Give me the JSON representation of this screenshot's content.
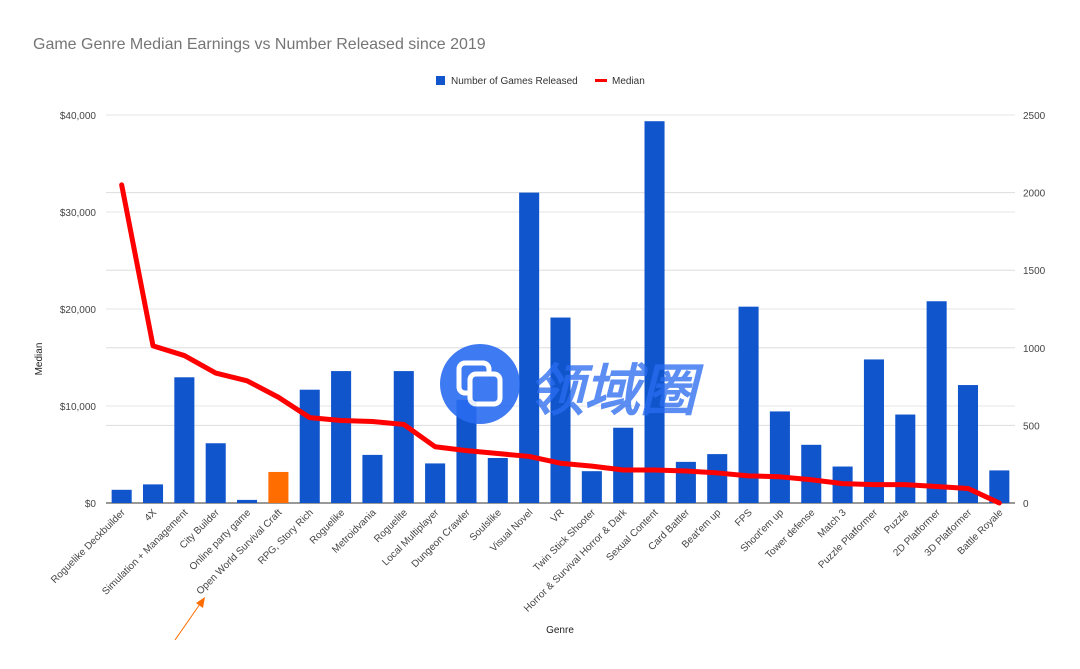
{
  "chart_data": {
    "type": "bar",
    "title": "Game Genre Median Earnings vs Number Released since 2019",
    "xlabel": "Genre",
    "ylabel": "Median",
    "y2label": "",
    "categories": [
      "Roguelike Deckbuilder",
      "4X",
      "Simulation + Management",
      "City Builder",
      "Online party game",
      "Open World Survival Craft",
      "RPG, Story Rich",
      "Roguelike",
      "Metroidvania",
      "Roguelite",
      "Local Multiplayer",
      "Dungeon Crawler",
      "Soulslike",
      "Visual Novel",
      "VR",
      "Twin Stick Shooter",
      "Horror & Survival Horror & Dark",
      "Sexual Content",
      "Card Battler",
      "Beat'em up",
      "FPS",
      "Shoot'em up",
      "Tower defense",
      "Match 3",
      "Puzzle Platformer",
      "Puzzle",
      "2D Platformer",
      "3D Platformer",
      "Battle Royale"
    ],
    "series": [
      {
        "name": "Number of Games Released",
        "type": "bar",
        "axis": "right",
        "color": "#1155cc",
        "values": [
          85,
          120,
          810,
          385,
          20,
          200,
          730,
          850,
          310,
          850,
          255,
          665,
          290,
          2000,
          1195,
          205,
          485,
          2460,
          265,
          315,
          1265,
          590,
          375,
          235,
          925,
          570,
          1300,
          760,
          210
        ]
      },
      {
        "name": "Median",
        "type": "line",
        "axis": "left",
        "color": "#ff0000",
        "values": [
          32800,
          16200,
          15200,
          13400,
          12600,
          10900,
          8800,
          8500,
          8400,
          8100,
          5800,
          5400,
          5100,
          4800,
          4100,
          3800,
          3400,
          3400,
          3300,
          3100,
          2800,
          2700,
          2400,
          2000,
          1900,
          1900,
          1700,
          1500,
          0
        ]
      }
    ],
    "highlight": {
      "category": "Open World Survival Craft",
      "color": "#ff6d01"
    },
    "y_left": {
      "min": 0,
      "max": 40000,
      "ticks": [
        "$0",
        "$10,000",
        "$20,000",
        "$30,000",
        "$40,000"
      ]
    },
    "y_right": {
      "min": 0,
      "max": 2500,
      "ticks": [
        "0",
        "500",
        "1000",
        "1500",
        "2000",
        "2500"
      ]
    },
    "grid": true,
    "legend_position": "top-center"
  },
  "watermark": {
    "text": "领域圈",
    "color": "#2a6cf0"
  },
  "annotation_arrow_color": "#ff6d01"
}
